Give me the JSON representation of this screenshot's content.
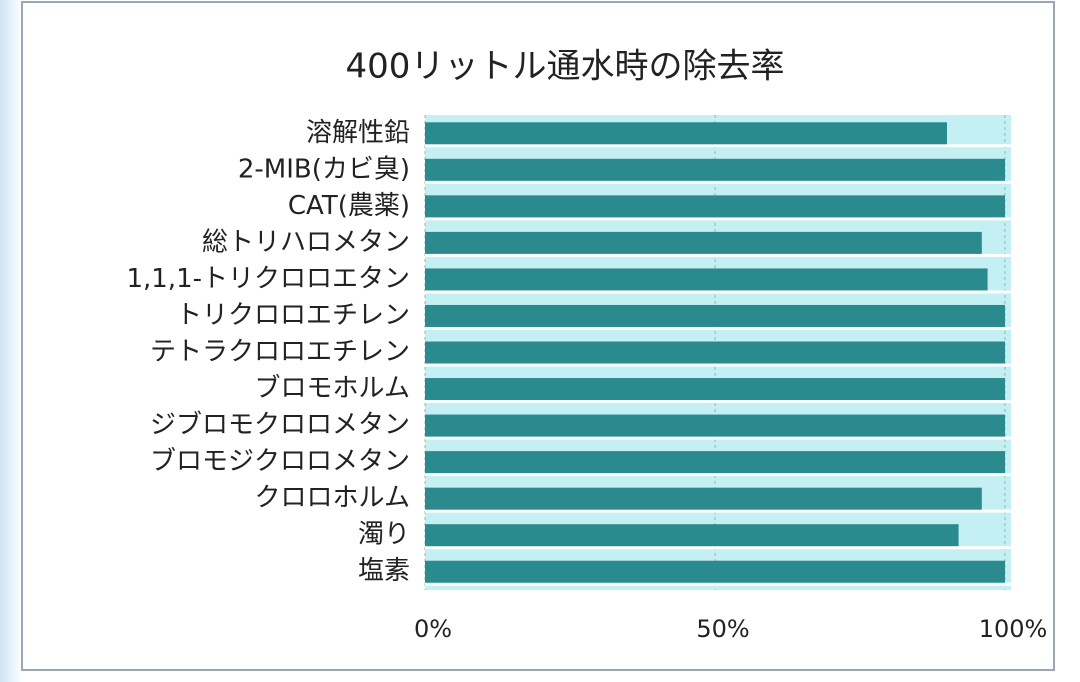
{
  "chart_data": {
    "type": "bar",
    "orientation": "horizontal",
    "title": "400リットル通水時の除去率",
    "categories": [
      "溶解性鉛",
      "2-MIB(カビ臭)",
      "CAT(農薬)",
      "総トリハロメタン",
      "1,1,1-トリクロロエタン",
      "トリクロロエチレン",
      "テトラクロロエチレン",
      "ブロモホルム",
      "ジブロモクロロメタン",
      "ブロモジクロロメタン",
      "クロロホルム",
      "濁り",
      "塩素"
    ],
    "values": [
      90,
      100,
      100,
      96,
      97,
      100,
      100,
      100,
      100,
      100,
      96,
      92,
      100
    ],
    "color": "#2b8a8d",
    "xlim": [
      0,
      100
    ],
    "xticks": [
      {
        "value": 0,
        "label": "0%"
      },
      {
        "value": 50,
        "label": "50%"
      },
      {
        "value": 100,
        "label": "100%"
      }
    ],
    "grid": true
  }
}
